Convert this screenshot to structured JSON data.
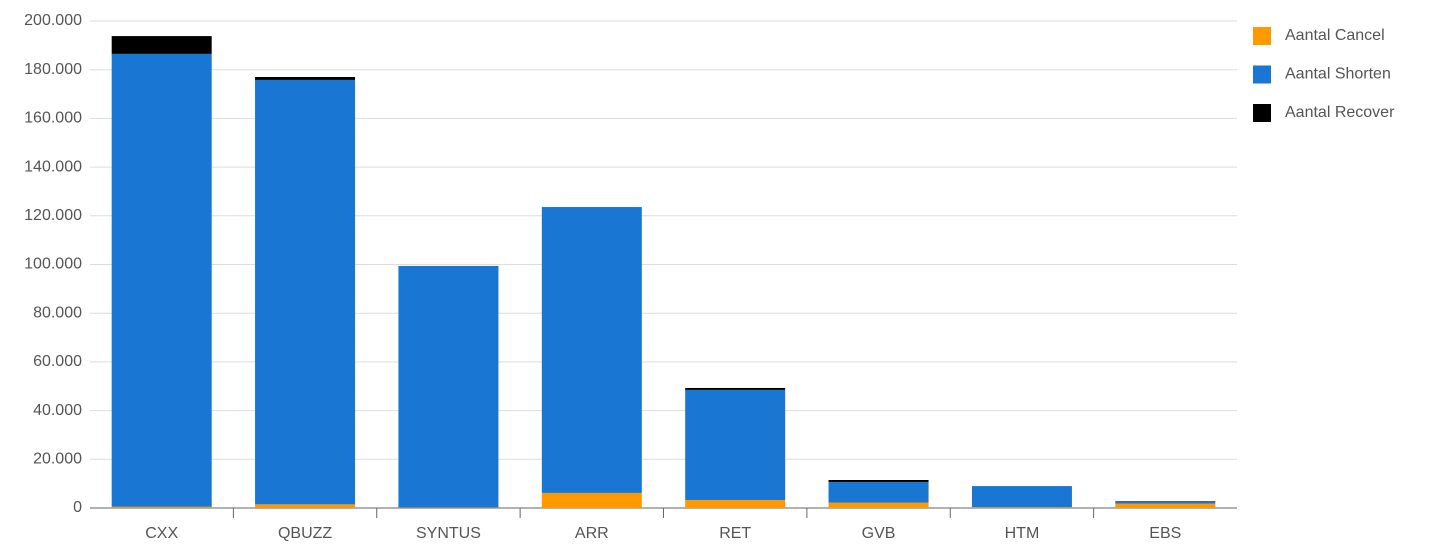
{
  "chart_data": {
    "type": "stacked_bar",
    "categories": [
      "CXX",
      "QBUZZ",
      "SYNTUS",
      "ARR",
      "RET",
      "GVB",
      "HTM",
      "EBS"
    ],
    "series": [
      {
        "name": "Aantal Cancel",
        "color": "#ff9900",
        "values": [
          500,
          1500,
          200,
          6200,
          3300,
          2200,
          300,
          1800
        ]
      },
      {
        "name": "Aantal Shorten",
        "color": "#1976d2",
        "values": [
          186000,
          174300,
          99200,
          117400,
          45200,
          8500,
          8700,
          800
        ]
      },
      {
        "name": "Aantal Recover",
        "color": "#000000",
        "values": [
          7300,
          1200,
          0,
          0,
          800,
          800,
          0,
          200
        ]
      }
    ],
    "ylim": [
      0,
      200000
    ],
    "yticks": [
      0,
      {
        "value": 20000,
        "label": "20.000"
      },
      {
        "value": 40000,
        "label": "40.000"
      },
      {
        "value": 60000,
        "label": "60.000"
      },
      {
        "value": 80000,
        "label": "80.000"
      },
      {
        "value": 100000,
        "label": "100.000"
      },
      {
        "value": 120000,
        "label": "120.000"
      },
      {
        "value": 140000,
        "label": "140.000"
      },
      {
        "value": 160000,
        "label": "160.000"
      },
      {
        "value": 180000,
        "label": "180.000"
      },
      {
        "value": 200000,
        "label": "200.000"
      }
    ],
    "grid": true,
    "legend": "right"
  }
}
